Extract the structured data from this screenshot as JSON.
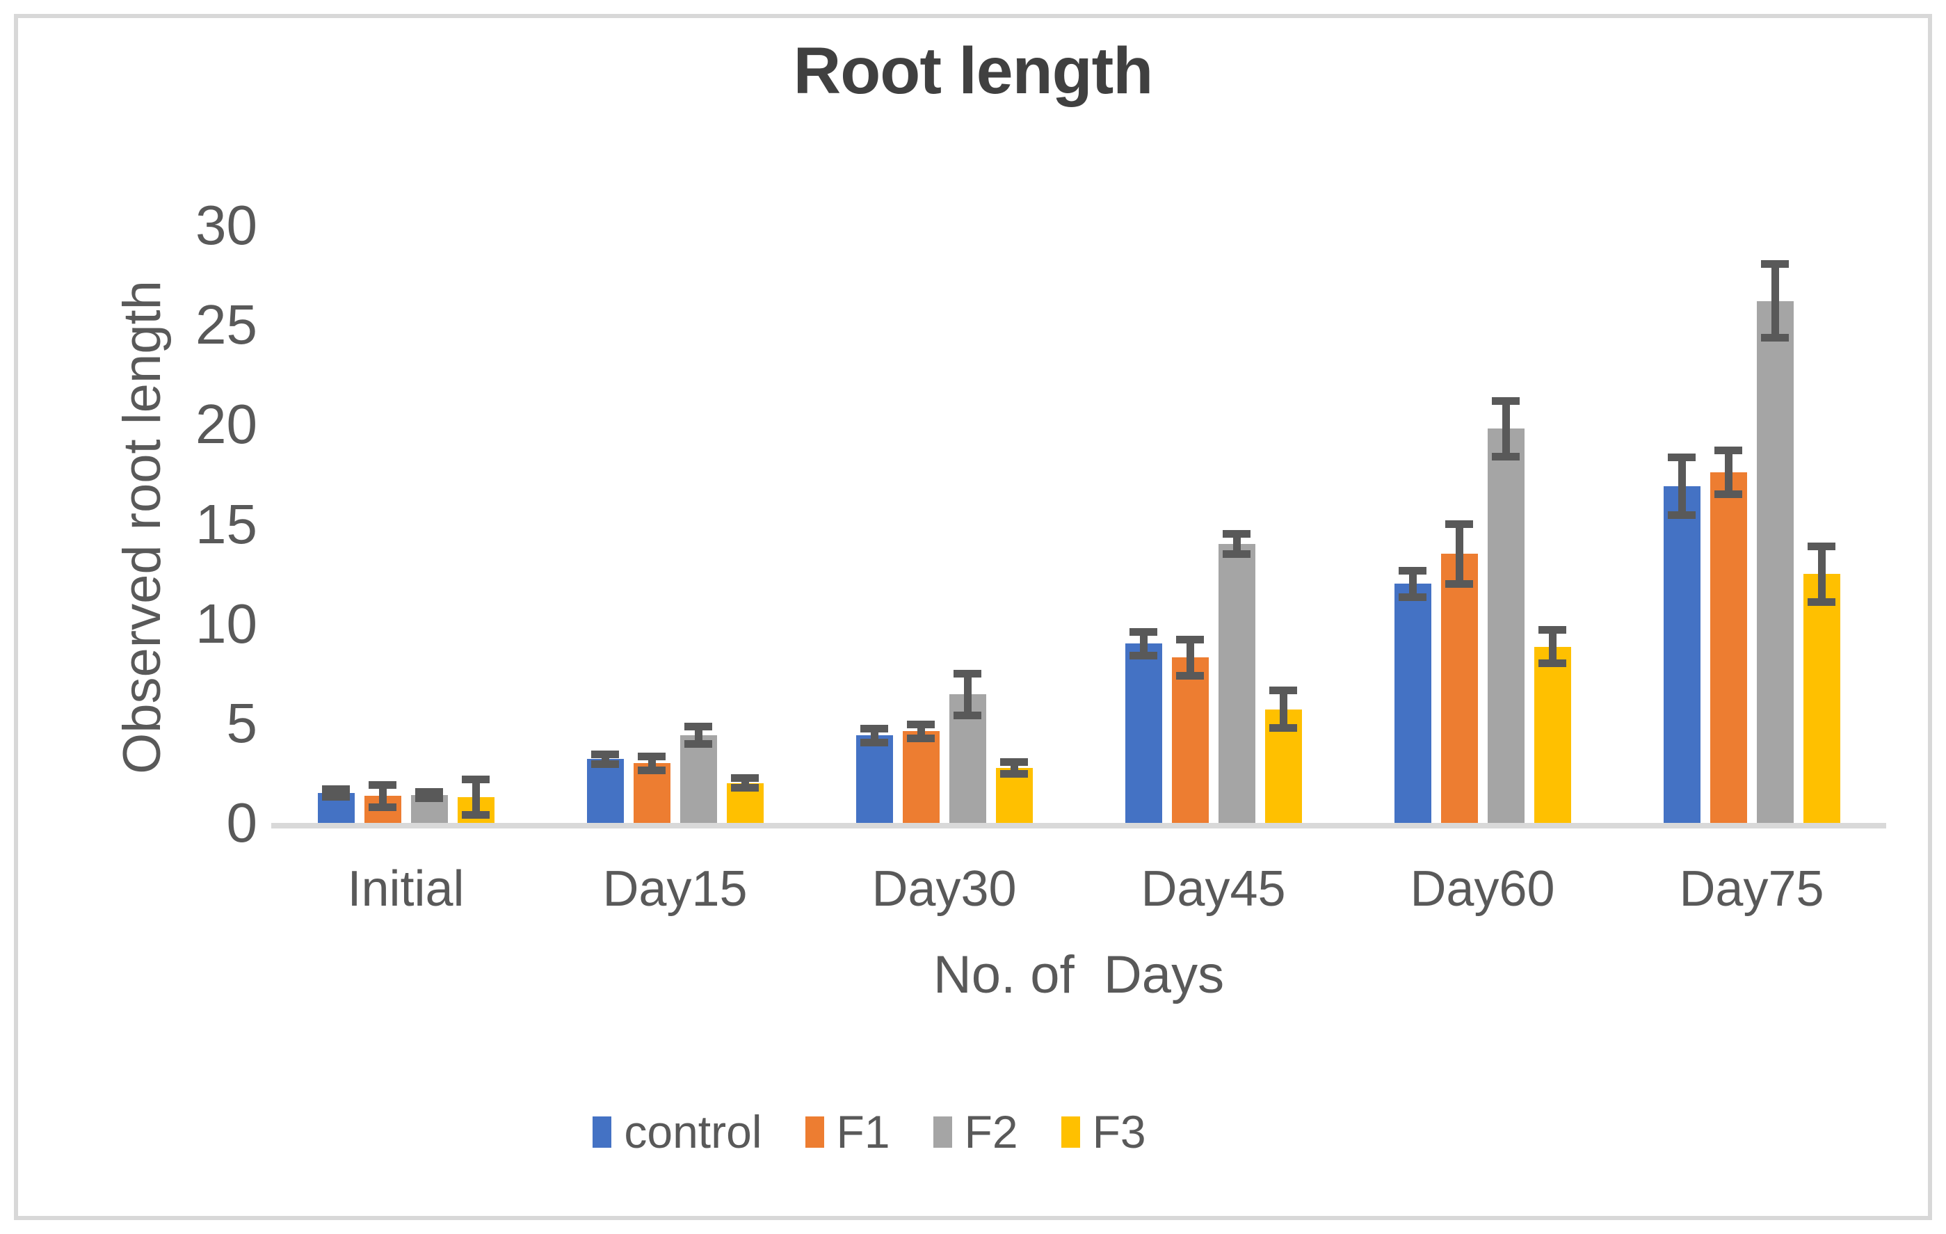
{
  "chart": {
    "title": "Root length"
  },
  "chart_data": {
    "type": "bar",
    "title": "Root length",
    "xlabel": "No. of  Days",
    "ylabel": "Observed root length",
    "ylim": [
      0,
      30
    ],
    "yticks": [
      0,
      5,
      10,
      15,
      20,
      25,
      30
    ],
    "grid": false,
    "legend_position": "bottom",
    "categories": [
      "Initial",
      "Day15",
      "Day30",
      "Day45",
      "Day60",
      "Day75"
    ],
    "series": [
      {
        "name": "control",
        "color": "#4472C4",
        "values": [
          1.5,
          3.2,
          4.4,
          9.0,
          12.0,
          16.9
        ],
        "errors": [
          0.2,
          0.25,
          0.35,
          0.6,
          0.65,
          1.45
        ]
      },
      {
        "name": "F1",
        "color": "#ED7D31",
        "values": [
          1.35,
          3.0,
          4.6,
          8.3,
          13.5,
          17.6
        ],
        "errors": [
          0.55,
          0.35,
          0.35,
          0.9,
          1.5,
          1.1
        ]
      },
      {
        "name": "F2",
        "color": "#A5A5A5",
        "values": [
          1.4,
          4.4,
          6.45,
          14.0,
          19.8,
          26.2
        ],
        "errors": [
          0.15,
          0.45,
          1.05,
          0.5,
          1.4,
          1.85
        ]
      },
      {
        "name": "F3",
        "color": "#FFC000",
        "values": [
          1.3,
          2.0,
          2.75,
          5.7,
          8.85,
          12.5
        ],
        "errors": [
          0.9,
          0.25,
          0.3,
          0.95,
          0.85,
          1.4
        ]
      }
    ],
    "colors": {
      "error_bar": "#595959",
      "axis_line": "#D9D9D9",
      "text": "#595959",
      "title": "#404040",
      "frame_border": "#D8D8D8"
    }
  }
}
